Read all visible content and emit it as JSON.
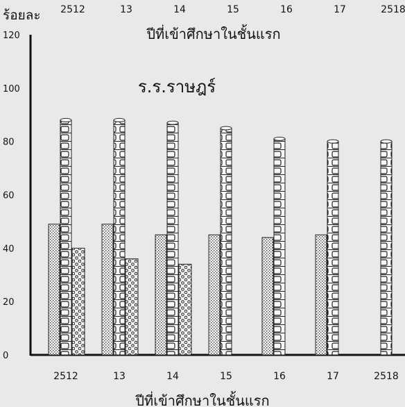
{
  "chart_data": {
    "type": "bar",
    "ylabel": "ร้อยละ",
    "top_axis_title": "ปีที่เข้าศึกษาในชั้นแรก",
    "xlabel": "ปีที่เข้าศึกษาในชั้นแรก",
    "annotation": "ร.ร.ราษฎร์",
    "categories": [
      "2512",
      "13",
      "14",
      "15",
      "16",
      "17",
      "2518"
    ],
    "ylim": [
      0,
      120
    ],
    "yticks": [
      0,
      20,
      40,
      60,
      80,
      100,
      120
    ],
    "grid": false,
    "series": [
      {
        "pattern": "dots-fine",
        "values": [
          49,
          49,
          45,
          45,
          44,
          45,
          null
        ]
      },
      {
        "pattern": "brick",
        "values": [
          88,
          88,
          87,
          85,
          81,
          80,
          80
        ]
      },
      {
        "pattern": "circles",
        "values": [
          40,
          36,
          34,
          null,
          null,
          null,
          null
        ]
      }
    ]
  }
}
